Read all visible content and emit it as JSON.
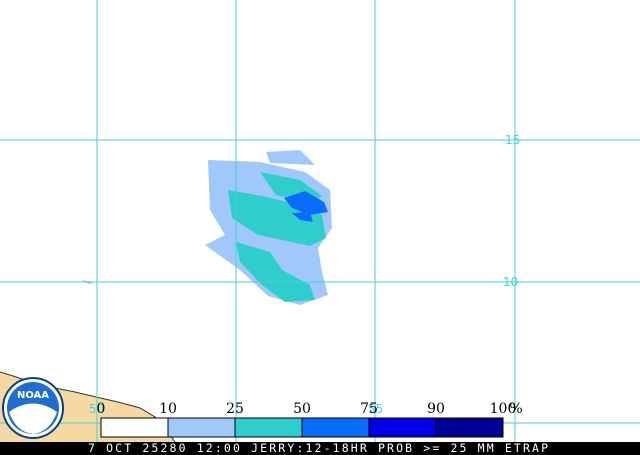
{
  "map": {
    "grid_labels": {
      "lat": [
        "15",
        "10"
      ],
      "lon": [
        "50",
        "55"
      ]
    },
    "legend": {
      "labels": [
        "0",
        "10",
        "25",
        "50",
        "75",
        "90",
        "100"
      ],
      "unit": "%",
      "colors": [
        "#ffffff",
        "#a0c8fa",
        "#30cdcd",
        "#0a6cff",
        "#0000e6",
        "#000096"
      ]
    },
    "logo_text": "NOAA",
    "caption": "7 OCT 25280 12:00 JERRY:12-18HR PROB >= 25 MM ETRAP"
  }
}
